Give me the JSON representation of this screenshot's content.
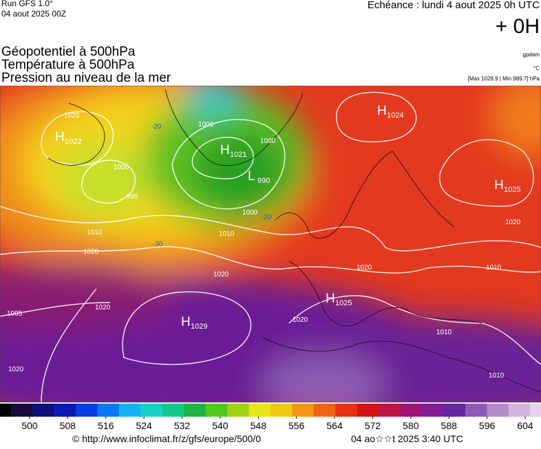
{
  "header": {
    "run": "Run GFS 1.0°",
    "run_date": "04 aout 2025 00Z",
    "echeance": "Echéance : lundi 4 aout 2025 0h UTC",
    "offset": "+ 0H"
  },
  "layers": [
    "Géopotentiel à 500hPa",
    "Température à 500hPa",
    "Pression au niveau de la mer"
  ],
  "units": [
    "gpdam",
    "°C",
    "[Max 1028.9 | Min 989.7] hPa"
  ],
  "centers": [
    {
      "letter": "H",
      "value": "1022"
    },
    {
      "letter": "H",
      "value": "1021"
    },
    {
      "letter": "L",
      "value": "990"
    },
    {
      "letter": "H",
      "value": "1024"
    },
    {
      "letter": "H",
      "value": "1025"
    },
    {
      "letter": "H",
      "value": "1025"
    },
    {
      "letter": "H",
      "value": "1029"
    }
  ],
  "isobar_labels": [
    "1020",
    "1000",
    "995",
    "1010",
    "1020",
    "1000",
    "1000",
    "1000",
    "1010",
    "1020",
    "1020",
    "1005",
    "1020",
    "1020",
    "1020",
    "1010",
    "1010",
    "1010",
    "1020"
  ],
  "temperature_labels": [
    "-20",
    "-20",
    "-30"
  ],
  "scale": {
    "labels": [
      500,
      508,
      516,
      524,
      532,
      540,
      548,
      556,
      564,
      572,
      580,
      588,
      596,
      604
    ]
  },
  "footer": {
    "url": "© http://www.infoclimat.fr/z/gfs/europe/500/0",
    "timestamp": "04 ao☆☆t 2025  3:40 UTC"
  }
}
